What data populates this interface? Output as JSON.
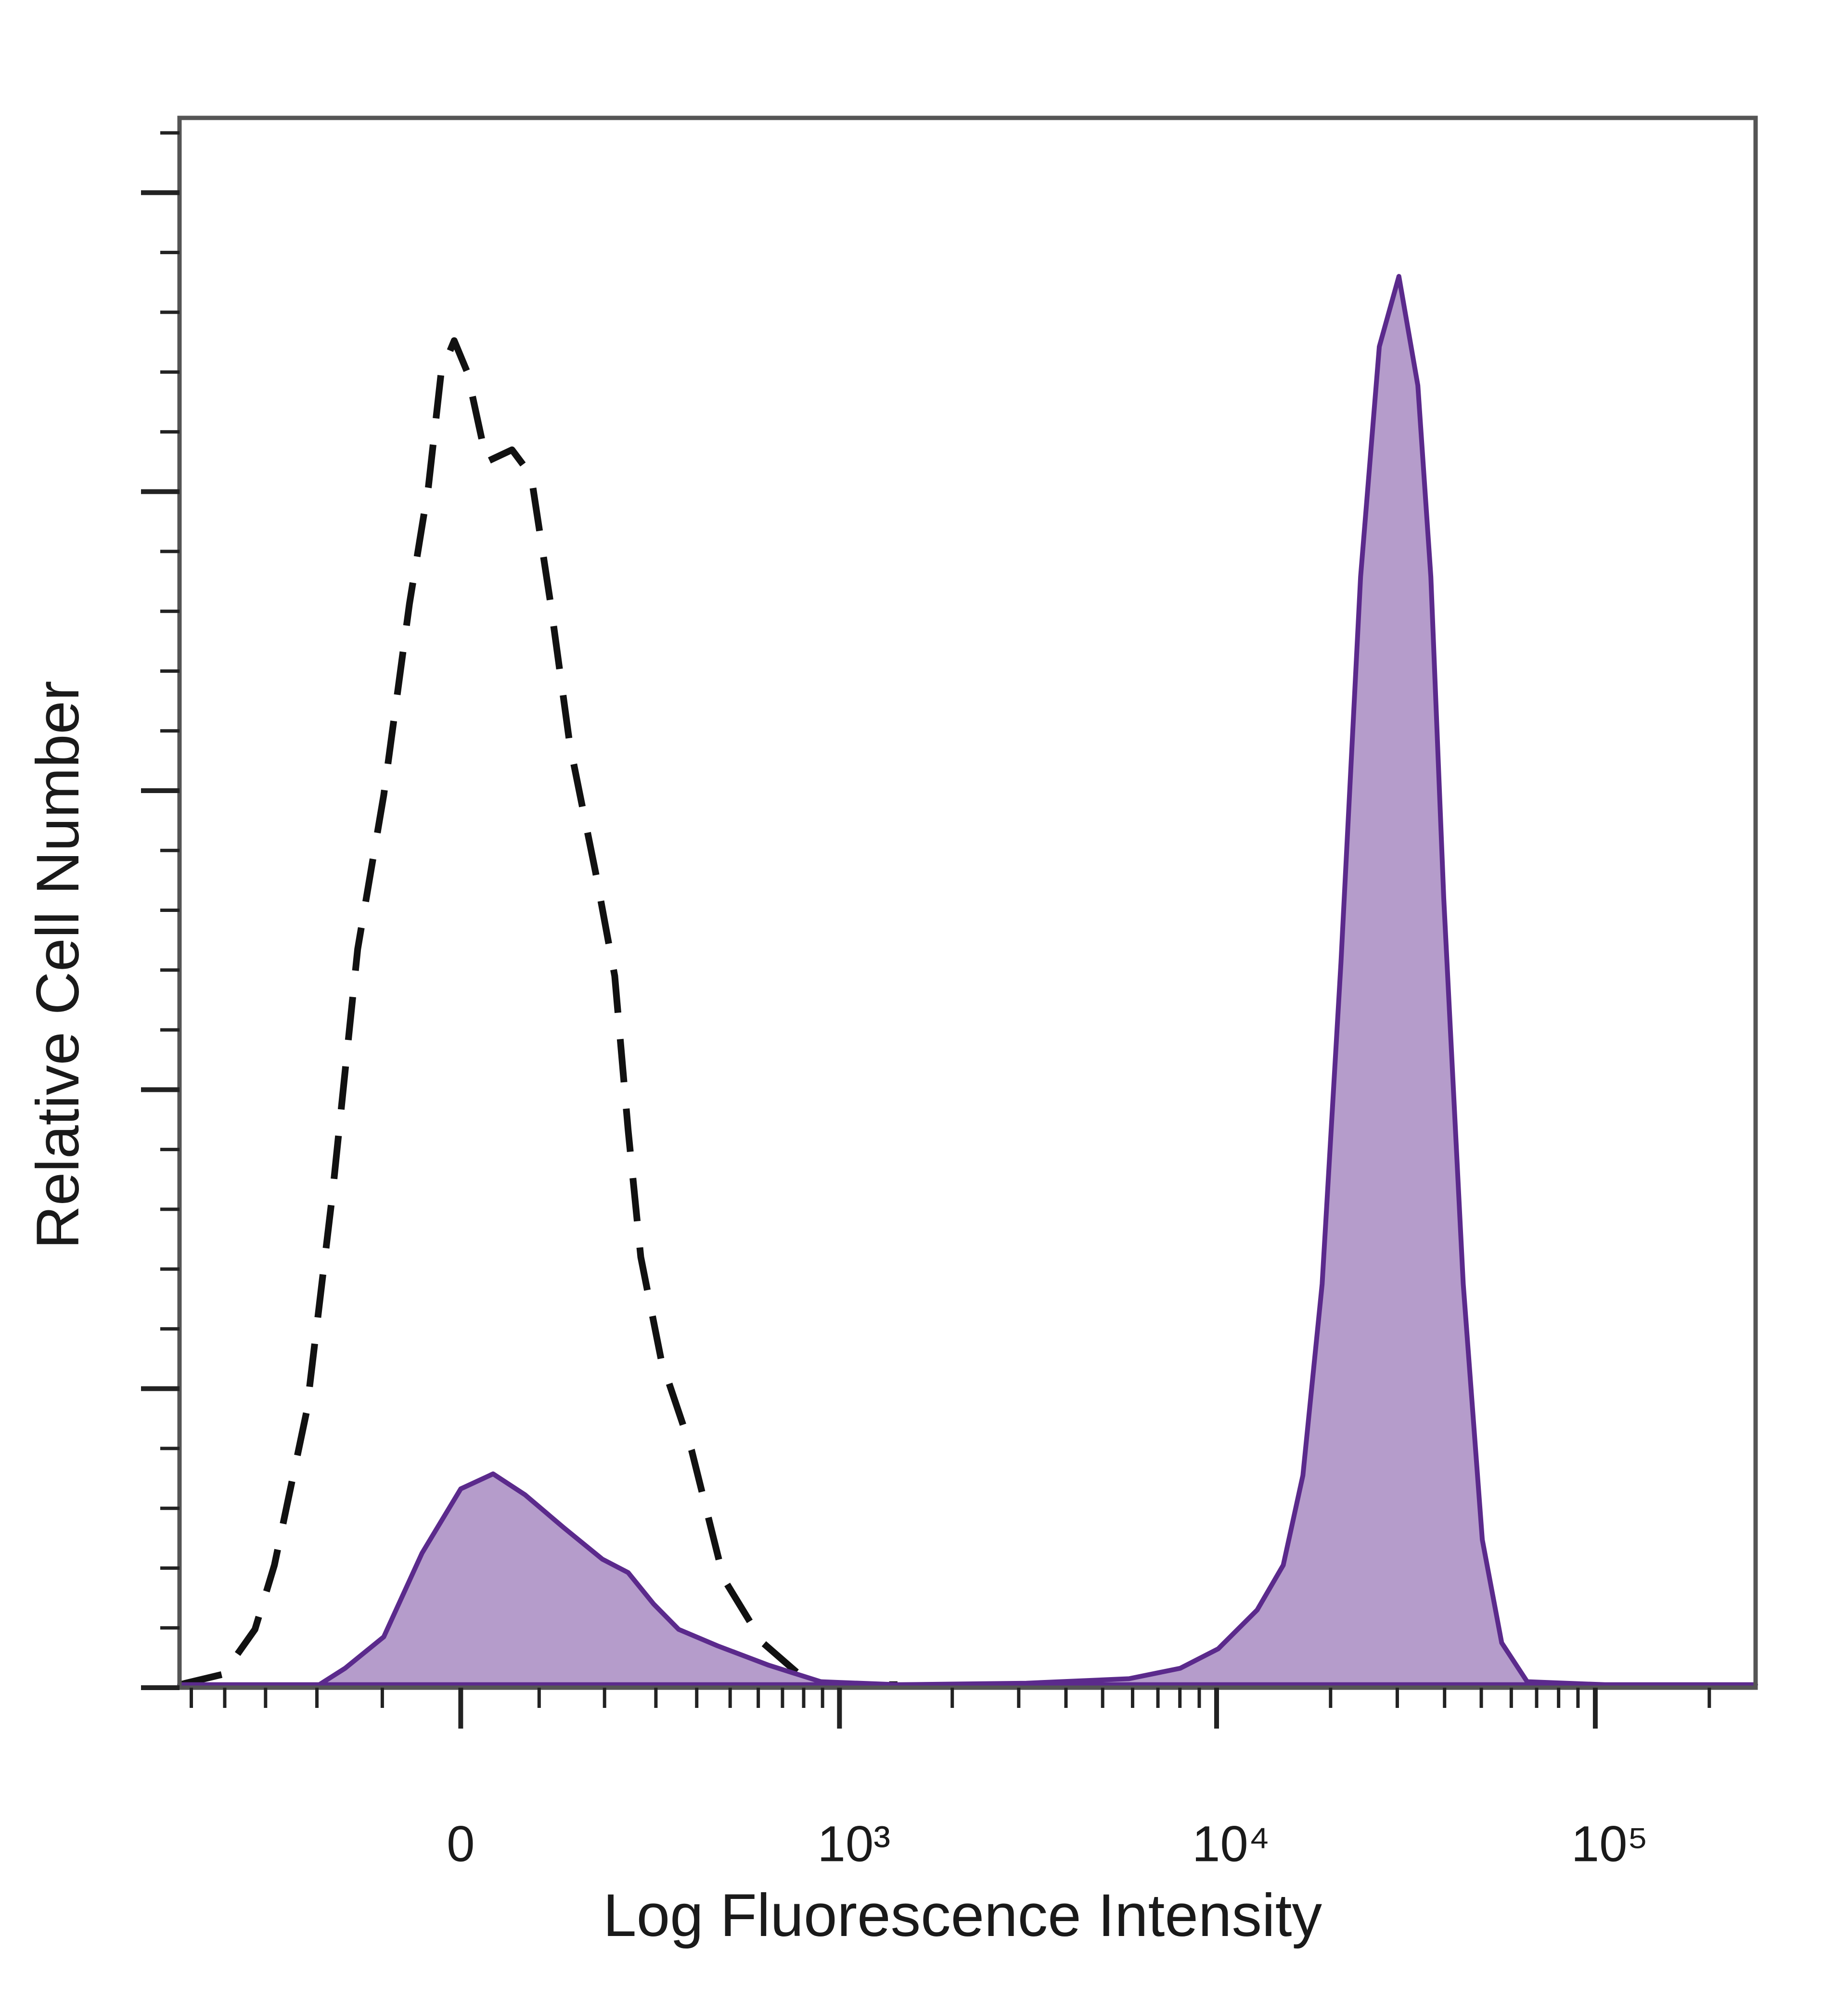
{
  "chart_data": {
    "type": "area",
    "x_label": "Log Fluorescence Intensity",
    "y_label": "Relative Cell Number",
    "xscale": "biexponential",
    "xlim": [
      -540,
      265000
    ],
    "ylim": [
      0,
      105
    ],
    "xticks": [
      0,
      {
        "value": 1000,
        "label": "10³"
      },
      {
        "value": 10000,
        "label": "10⁴"
      },
      {
        "value": 100000,
        "label": "10⁵"
      }
    ],
    "xminorticks": [
      -500,
      -400,
      -300,
      -200,
      -100,
      100,
      200,
      300,
      400,
      500,
      600,
      700,
      800,
      900,
      2000,
      3000,
      4000,
      5000,
      6000,
      7000,
      8000,
      9000,
      20000,
      30000,
      40000,
      50000,
      60000,
      70000,
      80000,
      90000,
      200000
    ],
    "yticks": [
      0,
      20,
      40,
      60,
      80,
      100
    ],
    "yminorticks": [
      4,
      8,
      12,
      16,
      24,
      28,
      32,
      36,
      44,
      48,
      52,
      56,
      64,
      68,
      72,
      76,
      84,
      88,
      92,
      96,
      104
    ],
    "grid": false,
    "series": [
      {
        "color": "#111111",
        "dash": true,
        "x": [
          -540,
          -404,
          -324,
          -281,
          -218,
          -174,
          -135,
          -98,
          -64,
          -40,
          -24,
          -8,
          8,
          32,
          64,
          89,
          116,
          144,
          185,
          218,
          243,
          268,
          312,
          386,
          479,
          618,
          820,
          1042,
          1430
        ],
        "values": [
          0.2,
          0.9,
          3.9,
          8.2,
          18.5,
          33.0,
          49.4,
          59.7,
          72.5,
          80.3,
          88.0,
          90.1,
          88.0,
          82.0,
          82.8,
          81.1,
          72.5,
          63.1,
          54.5,
          47.6,
          37.3,
          28.8,
          21.9,
          15.9,
          7.3,
          3.0,
          0.4,
          0.2,
          0.2
        ]
      },
      {
        "color": "#5b2a8c",
        "fill": "#b59ccb",
        "x": [
          -540,
          -196,
          -154,
          -98,
          -48,
          0,
          40,
          81,
          135,
          196,
          243,
          295,
          353,
          460,
          642,
          891,
          1430,
          3140,
          5870,
          8020,
          10100,
          12800,
          15000,
          16900,
          19000,
          21300,
          24000,
          26900,
          30300,
          34000,
          36800,
          39800,
          44800,
          50300,
          56600,
          66100,
          106000,
          265000
        ],
        "values": [
          0.2,
          0.2,
          1.3,
          3.4,
          9.0,
          13.3,
          14.3,
          12.9,
          10.7,
          8.6,
          7.7,
          5.6,
          3.9,
          2.8,
          1.5,
          0.4,
          0.2,
          0.3,
          0.6,
          1.3,
          2.6,
          5.2,
          8.2,
          14.2,
          27.0,
          48.5,
          74.3,
          89.7,
          94.4,
          87.1,
          74.3,
          52.8,
          27.0,
          9.9,
          3.0,
          0.4,
          0.2,
          0.2
        ]
      }
    ]
  }
}
